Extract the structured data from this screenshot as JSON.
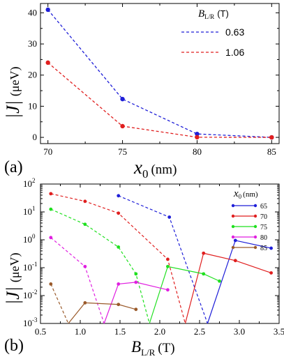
{
  "chart_data": [
    {
      "type": "line",
      "panel": "(a)",
      "xlabel_main": "x",
      "xlabel_sub": "0",
      "xlabel_unit": "(nm)",
      "ylabel_main": "|J|",
      "ylabel_unit": "(μeV)",
      "xlim": [
        69.5,
        85.5
      ],
      "ylim": [
        -2,
        43
      ],
      "xticks": [
        70,
        75,
        80,
        85
      ],
      "yticks": [
        0,
        10,
        20,
        30,
        40
      ],
      "legend_title_main": "B",
      "legend_title_sub": "L/R",
      "legend_title_unit": "(T)",
      "x": [
        70,
        75,
        80,
        85
      ],
      "series": [
        {
          "name": "0.63",
          "color": "#1f1fd8",
          "values": [
            41,
            12.3,
            1.1,
            0.0
          ]
        },
        {
          "name": "1.06",
          "color": "#e01f1f",
          "values": [
            24,
            3.6,
            0.05,
            0.0
          ]
        }
      ]
    },
    {
      "type": "line",
      "panel": "(b)",
      "xlabel_main": "B",
      "xlabel_sub": "L/R",
      "xlabel_unit": "(T)",
      "ylabel_main": "|J|",
      "ylabel_unit": "(μeV)",
      "log_y": true,
      "xlim": [
        0.5,
        3.5
      ],
      "ylim": [
        0.001,
        100
      ],
      "xticks": [
        "0.5",
        "1.0",
        "1.5",
        "2.0",
        "2.5",
        "3.0",
        "3.5"
      ],
      "yticks": [
        {
          "base": "10",
          "exp": "2"
        },
        {
          "base": "10",
          "exp": "1"
        },
        {
          "base": "10",
          "exp": "0"
        },
        {
          "base": "10",
          "exp": "-1"
        },
        {
          "base": "10",
          "exp": "-2"
        },
        {
          "base": "10",
          "exp": "-3"
        }
      ],
      "legend_title_main": "x",
      "legend_title_sub": "0",
      "legend_title_unit": "(nm)",
      "series": [
        {
          "name": "65",
          "color": "#1f1fd8",
          "dashed": [
            [
              1.48,
              38
            ],
            [
              2.12,
              6.5
            ],
            [
              2.6,
              0.001
            ]
          ],
          "solid": [
            [
              2.6,
              0.001
            ],
            [
              2.95,
              0.95
            ],
            [
              3.4,
              0.5
            ]
          ]
        },
        {
          "name": "70",
          "color": "#e01f1f",
          "dashed": [
            [
              0.63,
              45
            ],
            [
              1.06,
              24
            ],
            [
              1.48,
              9
            ],
            [
              2.1,
              0.2
            ],
            [
              2.32,
              0.001
            ]
          ],
          "solid": [
            [
              2.32,
              0.001
            ],
            [
              2.55,
              0.33
            ],
            [
              2.95,
              0.18
            ],
            [
              3.4,
              0.065
            ]
          ]
        },
        {
          "name": "75",
          "color": "#1fe01f",
          "dashed": [
            [
              0.63,
              12.5
            ],
            [
              1.06,
              3.6
            ],
            [
              1.48,
              0.55
            ],
            [
              1.7,
              0.06
            ],
            [
              1.87,
              0.001
            ]
          ],
          "solid": [
            [
              1.87,
              0.001
            ],
            [
              2.1,
              0.11
            ],
            [
              2.55,
              0.06
            ],
            [
              2.75,
              0.033
            ]
          ]
        },
        {
          "name": "80",
          "color": "#e01fe0",
          "dashed": [
            [
              0.63,
              1.2
            ],
            [
              1.06,
              0.11
            ],
            [
              1.3,
              0.001
            ]
          ],
          "solid": [
            [
              1.3,
              0.001
            ],
            [
              1.48,
              0.026
            ],
            [
              1.7,
              0.03
            ],
            [
              2.1,
              0.016
            ]
          ]
        },
        {
          "name": "85",
          "color": "#9a5a2a",
          "dashed": [
            [
              0.63,
              0.026
            ],
            [
              0.85,
              0.001
            ]
          ],
          "solid": [
            [
              0.85,
              0.001
            ],
            [
              1.06,
              0.0055
            ],
            [
              1.48,
              0.0048
            ],
            [
              1.7,
              0.0032
            ]
          ]
        }
      ]
    }
  ]
}
